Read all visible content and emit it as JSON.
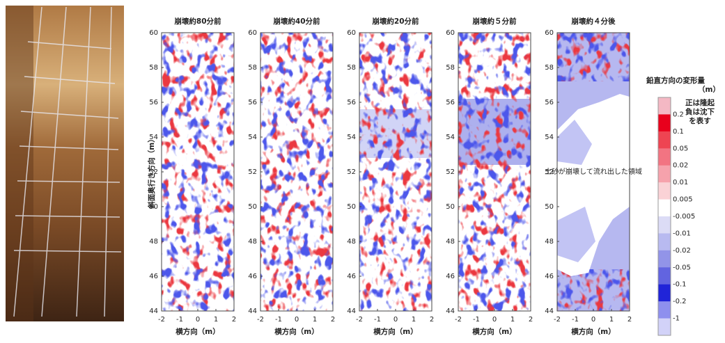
{
  "panels": [
    {
      "title": "崩壊約80分前"
    },
    {
      "title": "崩壊約40分前"
    },
    {
      "title": "崩壊約20分前"
    },
    {
      "title": "崩壊約５分前"
    },
    {
      "title": "崩壊約４分後"
    }
  ],
  "y_axis": {
    "label": "斜面奥行き方向（m）",
    "ticks": [
      "60",
      "58",
      "56",
      "54",
      "52",
      "50",
      "48",
      "46",
      "44"
    ]
  },
  "x_axis": {
    "label": "横方向（m）",
    "ticks": [
      "-2",
      "-1",
      "0",
      "1",
      "2"
    ]
  },
  "annotation": "土砂が崩壊して流れ出した領域",
  "colorbar": {
    "title": "鉛直方向の変形量",
    "unit": "（m）",
    "note": [
      "正は隆起",
      "負は沈下",
      "を表す"
    ],
    "labels": [
      "0.2",
      "0.1",
      "0.05",
      "0.02",
      "0.01",
      "0.005",
      "-0.005",
      "-0.01",
      "-0.02",
      "-0.05",
      "-0.1",
      "-0.2",
      "-1"
    ],
    "colors": [
      "#f4b8c4",
      "#e8001c",
      "#ee4452",
      "#f27482",
      "#f6a2ac",
      "#fad2d6",
      "#ffffff",
      "#dcdcf6",
      "#b8baf0",
      "#9294e8",
      "#6264e0",
      "#2024d8",
      "#8e90ee",
      "#d2d2f8"
    ]
  }
}
